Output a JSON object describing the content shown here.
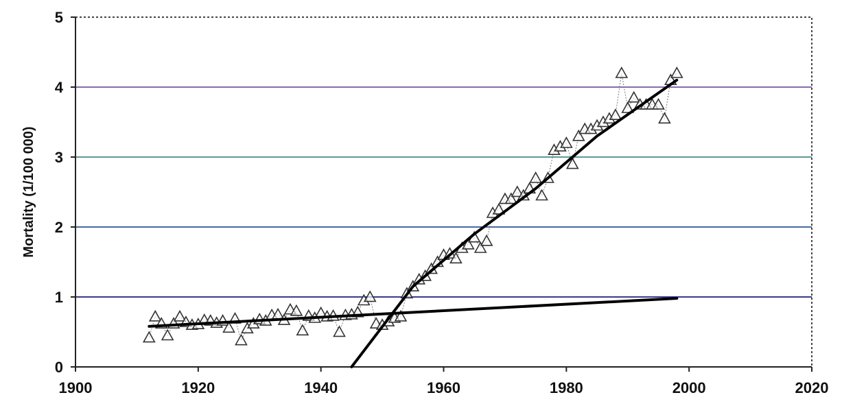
{
  "chart_data": {
    "type": "scatter",
    "title": "",
    "xlabel": "",
    "ylabel": "Mortality (1/100 000)",
    "xlim": [
      1900,
      2020
    ],
    "ylim": [
      0,
      5
    ],
    "x_ticks": [
      "1900",
      "1920",
      "1940",
      "1960",
      "1980",
      "2000",
      "2020"
    ],
    "y_ticks": [
      "0",
      "1",
      "2",
      "3",
      "4",
      "5"
    ],
    "grid": true,
    "legend": "none",
    "colors": {
      "gridlines": [
        "#3a3a8a",
        "#4a6aa0",
        "#5a9a9a",
        "#8a6ab0",
        "#5aa0a0"
      ],
      "markers": "#333333",
      "trendlines": "#000000",
      "frame": "#444444"
    },
    "series": [
      {
        "type": "scatter",
        "marker": "open-triangle",
        "x": [
          1912,
          1913,
          1914,
          1915,
          1916,
          1917,
          1918,
          1919,
          1920,
          1921,
          1922,
          1923,
          1924,
          1925,
          1926,
          1927,
          1928,
          1929,
          1930,
          1931,
          1932,
          1933,
          1934,
          1935,
          1936,
          1937,
          1938,
          1939,
          1940,
          1941,
          1942,
          1943,
          1944,
          1945,
          1946,
          1947,
          1948,
          1949,
          1950,
          1951,
          1952,
          1953,
          1954,
          1955,
          1956,
          1957,
          1958,
          1959,
          1960,
          1961,
          1962,
          1963,
          1964,
          1965,
          1966,
          1967,
          1968,
          1969,
          1970,
          1971,
          1972,
          1973,
          1974,
          1975,
          1976,
          1977,
          1978,
          1979,
          1980,
          1981,
          1982,
          1983,
          1984,
          1985,
          1986,
          1987,
          1988,
          1989,
          1990,
          1991,
          1992,
          1993,
          1994,
          1995,
          1996,
          1997,
          1998
        ],
        "y": [
          0.42,
          0.72,
          0.62,
          0.45,
          0.62,
          0.72,
          0.64,
          0.6,
          0.61,
          0.67,
          0.66,
          0.63,
          0.66,
          0.56,
          0.69,
          0.38,
          0.55,
          0.62,
          0.68,
          0.66,
          0.74,
          0.75,
          0.67,
          0.82,
          0.8,
          0.52,
          0.73,
          0.7,
          0.77,
          0.72,
          0.73,
          0.5,
          0.74,
          0.75,
          0.78,
          0.95,
          1.0,
          0.62,
          0.6,
          0.65,
          0.7,
          0.72,
          1.05,
          1.15,
          1.25,
          1.3,
          1.4,
          1.5,
          1.6,
          1.62,
          1.55,
          1.7,
          1.75,
          1.85,
          1.7,
          1.8,
          2.2,
          2.25,
          2.4,
          2.4,
          2.5,
          2.45,
          2.55,
          2.7,
          2.45,
          2.7,
          3.1,
          3.15,
          3.2,
          2.9,
          3.3,
          3.4,
          3.4,
          3.45,
          3.5,
          3.55,
          3.6,
          4.2,
          3.7,
          3.85,
          3.75,
          3.75,
          3.75,
          3.75,
          3.55,
          4.1,
          4.2
        ]
      },
      {
        "type": "line",
        "x": [
          1912,
          1998
        ],
        "y": [
          0.58,
          0.98
        ]
      },
      {
        "type": "line",
        "x": [
          1945,
          1955,
          1965,
          1975,
          1985,
          1998
        ],
        "y": [
          0.0,
          1.15,
          1.9,
          2.55,
          3.3,
          4.1
        ]
      }
    ]
  }
}
